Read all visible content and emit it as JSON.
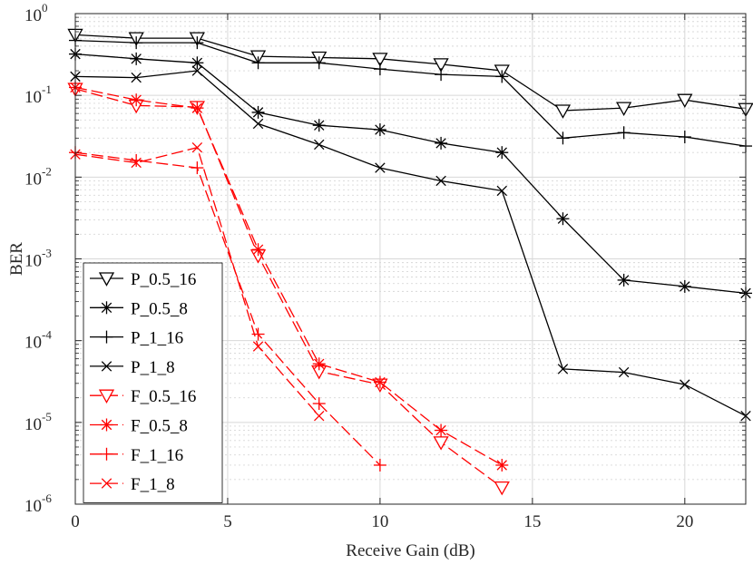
{
  "chart_data": {
    "type": "line",
    "title": "",
    "xlabel": "Receive Gain (dB)",
    "ylabel": "BER",
    "xlim": [
      0,
      22
    ],
    "ylim": [
      1e-06,
      1
    ],
    "yscale": "log",
    "grid": true,
    "legend_position": "left-middle",
    "x_ticks": [
      0,
      5,
      10,
      15,
      20
    ],
    "x_tick_labels": [
      "0",
      "5",
      "10",
      "15",
      "20"
    ],
    "y_ticks": [
      1e-06,
      1e-05,
      0.0001,
      0.001,
      0.01,
      0.1,
      1
    ],
    "y_tick_base": "10",
    "y_tick_exponents": [
      "-6",
      "-5",
      "-4",
      "-3",
      "-2",
      "-1",
      "0"
    ],
    "series": [
      {
        "name": "P_0.5_16",
        "color": "#000000",
        "dash": "solid",
        "marker": "triangle-down",
        "x": [
          0,
          2,
          4,
          6,
          8,
          10,
          12,
          14,
          16,
          18,
          20,
          22
        ],
        "y": [
          0.55,
          0.5,
          0.5,
          0.3,
          0.29,
          0.28,
          0.24,
          0.2,
          0.065,
          0.07,
          0.088,
          0.068
        ]
      },
      {
        "name": "P_0.5_8",
        "color": "#000000",
        "dash": "solid",
        "marker": "asterisk",
        "x": [
          0,
          2,
          4,
          6,
          8,
          10,
          12,
          14,
          16,
          18,
          20,
          22
        ],
        "y": [
          0.32,
          0.28,
          0.25,
          0.062,
          0.043,
          0.038,
          0.026,
          0.02,
          0.0031,
          0.00055,
          0.00046,
          0.00038
        ]
      },
      {
        "name": "P_1_16",
        "color": "#000000",
        "dash": "solid",
        "marker": "plus",
        "x": [
          0,
          2,
          4,
          6,
          8,
          10,
          12,
          14,
          16,
          18,
          20,
          22
        ],
        "y": [
          0.47,
          0.44,
          0.44,
          0.25,
          0.25,
          0.21,
          0.18,
          0.17,
          0.03,
          0.035,
          0.031,
          0.024
        ]
      },
      {
        "name": "P_1_8",
        "color": "#000000",
        "dash": "solid",
        "marker": "x",
        "x": [
          0,
          2,
          4,
          6,
          8,
          10,
          12,
          14,
          16,
          18,
          20,
          22
        ],
        "y": [
          0.17,
          0.165,
          0.2,
          0.045,
          0.025,
          0.013,
          0.009,
          0.0068,
          4.5e-05,
          4.1e-05,
          2.9e-05,
          1.2e-05
        ]
      },
      {
        "name": "F_0.5_16",
        "color": "#ff0000",
        "dash": "dashed",
        "marker": "triangle-down",
        "x": [
          0,
          2,
          4,
          6,
          8,
          10,
          12,
          14
        ],
        "y": [
          0.12,
          0.075,
          0.072,
          0.0011,
          4.2e-05,
          2.9e-05,
          5.7e-06,
          1.6e-06
        ]
      },
      {
        "name": "F_0.5_8",
        "color": "#ff0000",
        "dash": "dashed",
        "marker": "asterisk",
        "x": [
          0,
          2,
          4,
          6,
          8,
          10,
          12,
          14
        ],
        "y": [
          0.125,
          0.088,
          0.07,
          0.0013,
          5.2e-05,
          3.1e-05,
          8e-06,
          3e-06
        ]
      },
      {
        "name": "F_1_16",
        "color": "#ff0000",
        "dash": "dashed",
        "marker": "plus",
        "x": [
          0,
          2,
          4,
          6,
          8,
          10
        ],
        "y": [
          0.02,
          0.016,
          0.013,
          0.00012,
          1.7e-05,
          3e-06
        ]
      },
      {
        "name": "F_1_8",
        "color": "#ff0000",
        "dash": "dashed",
        "marker": "x",
        "x": [
          0,
          2,
          4,
          6,
          8
        ],
        "y": [
          0.019,
          0.015,
          0.023,
          8.5e-05,
          1.2e-05
        ]
      }
    ]
  }
}
